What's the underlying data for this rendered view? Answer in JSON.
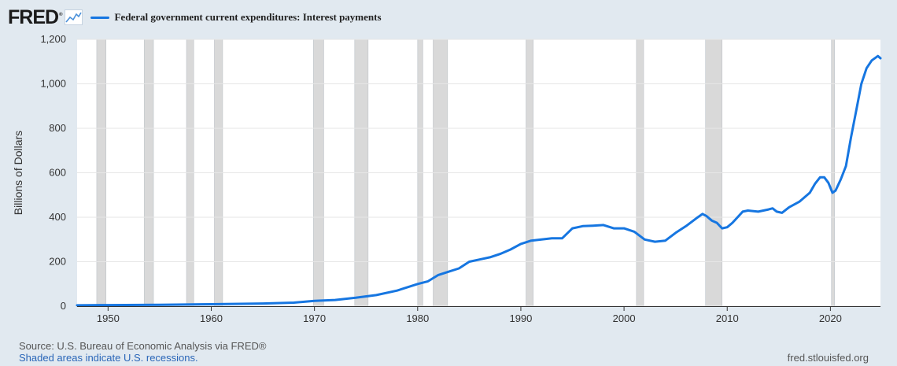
{
  "brand": {
    "logo_text": "FRED",
    "logo_mark": "®",
    "icon": "line-chart-icon"
  },
  "footer": {
    "source": "Source: U.S. Bureau of Economic Analysis via FRED®",
    "recession_note": "Shaded areas indicate U.S. recessions.",
    "site": "fred.stlouisfed.org"
  },
  "colors": {
    "series": "#1676e1",
    "background": "#e1e9f0",
    "plot_bg": "#ffffff",
    "recession": "#d9d9d9"
  },
  "chart_data": {
    "type": "line",
    "title": "",
    "ylabel": "Billions of Dollars",
    "xlabel": "",
    "xlim": [
      1947.0,
      2024.85
    ],
    "ylim": [
      0,
      1200
    ],
    "xticks": [
      1950,
      1960,
      1970,
      1980,
      1990,
      2000,
      2010,
      2020
    ],
    "xtick_labels": [
      "1950",
      "1960",
      "1970",
      "1980",
      "1990",
      "2000",
      "2010",
      "2020"
    ],
    "yticks": [
      0,
      200,
      400,
      600,
      800,
      1000,
      1200
    ],
    "ytick_labels": [
      "0",
      "200",
      "400",
      "600",
      "800",
      "1,000",
      "1,200"
    ],
    "grid": "horizontal",
    "legend_position": "top-left",
    "recessions": [
      [
        1948.9,
        1949.8
      ],
      [
        1953.5,
        1954.4
      ],
      [
        1957.6,
        1958.3
      ],
      [
        1960.3,
        1961.1
      ],
      [
        1969.9,
        1970.9
      ],
      [
        1973.9,
        1975.2
      ],
      [
        1980.0,
        1980.5
      ],
      [
        1981.5,
        1982.9
      ],
      [
        1990.5,
        1991.2
      ],
      [
        2001.2,
        2001.9
      ],
      [
        2007.9,
        2009.5
      ],
      [
        2020.1,
        2020.4
      ]
    ],
    "series": [
      {
        "name": "Federal government current expenditures: Interest payments",
        "x": [
          1947.0,
          1950.0,
          1955.0,
          1960.0,
          1965.0,
          1968.0,
          1970.0,
          1972.0,
          1974.0,
          1976.0,
          1978.0,
          1980.0,
          1981.0,
          1982.0,
          1983.0,
          1984.0,
          1985.0,
          1986.0,
          1987.0,
          1988.0,
          1989.0,
          1990.0,
          1991.0,
          1992.0,
          1993.0,
          1994.0,
          1995.0,
          1996.0,
          1997.0,
          1998.0,
          1999.0,
          2000.0,
          2001.0,
          2002.0,
          2003.0,
          2004.0,
          2005.0,
          2006.0,
          2007.0,
          2007.6,
          2008.0,
          2008.5,
          2009.0,
          2009.5,
          2010.0,
          2010.5,
          2011.0,
          2011.5,
          2012.0,
          2013.0,
          2014.0,
          2014.4,
          2014.8,
          2015.3,
          2016.0,
          2017.0,
          2018.0,
          2018.5,
          2019.0,
          2019.4,
          2019.8,
          2020.2,
          2020.5,
          2021.0,
          2021.5,
          2022.0,
          2022.5,
          2023.0,
          2023.5,
          2024.0,
          2024.6,
          2024.85
        ],
        "values": [
          4,
          5,
          6,
          9,
          12,
          16,
          24,
          28,
          38,
          50,
          70,
          100,
          112,
          140,
          155,
          170,
          200,
          210,
          220,
          235,
          255,
          280,
          295,
          300,
          305,
          305,
          350,
          360,
          362,
          365,
          350,
          350,
          335,
          300,
          290,
          295,
          330,
          360,
          395,
          415,
          405,
          385,
          375,
          350,
          355,
          375,
          400,
          425,
          430,
          425,
          435,
          440,
          425,
          420,
          445,
          470,
          510,
          550,
          580,
          580,
          555,
          510,
          520,
          570,
          630,
          760,
          880,
          1000,
          1070,
          1105,
          1125,
          1115
        ]
      }
    ]
  }
}
